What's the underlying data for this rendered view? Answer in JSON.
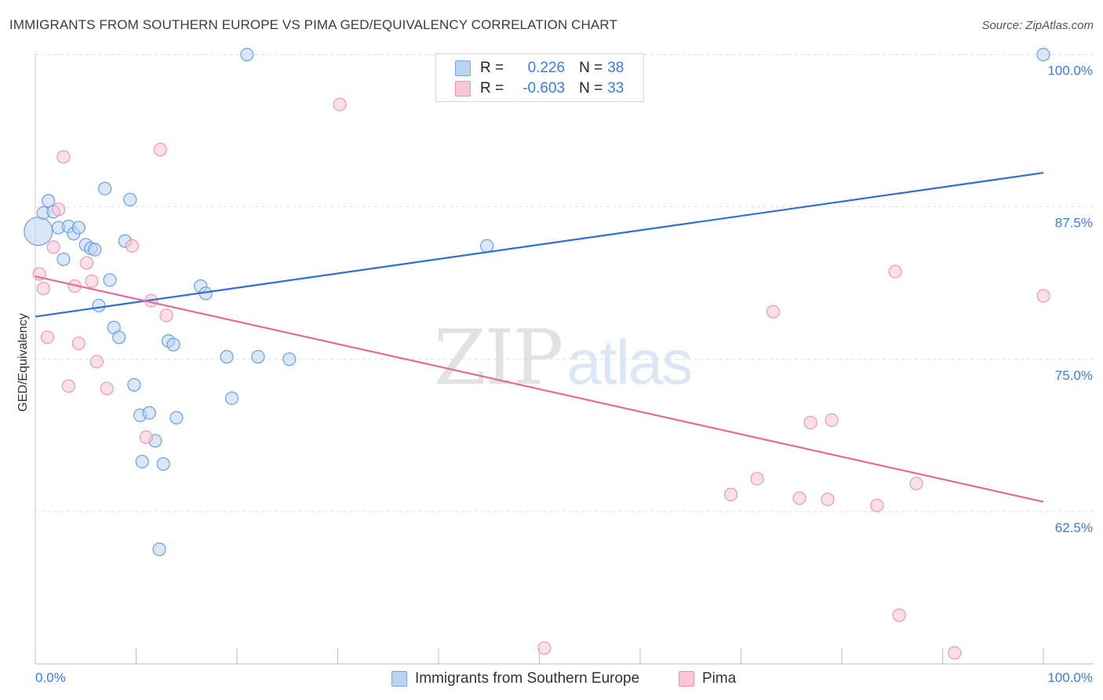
{
  "header": {
    "title": "IMMIGRANTS FROM SOUTHERN EUROPE VS PIMA GED/EQUIVALENCY CORRELATION CHART",
    "source": "Source: ZipAtlas.com"
  },
  "watermark": {
    "zip": "ZIP",
    "atlas": "atlas"
  },
  "legend": {
    "r_label": "R =",
    "n_label": "N =",
    "rows": [
      {
        "r": "0.226",
        "n": "38",
        "fill": "#b9d3f2",
        "stroke": "#7aa7e0"
      },
      {
        "r": "-0.603",
        "n": "33",
        "fill": "#f8c6d4",
        "stroke": "#ec98b2"
      }
    ]
  },
  "colors": {
    "blue_fill": "#b9d3f2",
    "blue_stroke": "#6a9fe0",
    "blue_line": "#2f6fcf",
    "pink_fill": "#f8c6d4",
    "pink_stroke": "#ec98b2",
    "pink_line": "#e46b96",
    "tick_label": "#3b7dd8",
    "grid": "#dddddd"
  },
  "chart_data": {
    "type": "scatter",
    "title": "IMMIGRANTS FROM SOUTHERN EUROPE VS PIMA GED/EQUIVALENCY CORRELATION CHART",
    "xlabel": "",
    "ylabel": "GED/Equivalency",
    "xlim": [
      0,
      100
    ],
    "ylim": [
      50,
      101
    ],
    "x_tick_labels": [
      "0.0%",
      "100.0%"
    ],
    "y_ticks": [
      62.5,
      75.0,
      87.5,
      100.0
    ],
    "y_tick_labels": [
      "62.5%",
      "75.0%",
      "87.5%",
      "100.0%"
    ],
    "grid": true,
    "legend_position": "bottom",
    "series": [
      {
        "name": "Immigrants from Southern Europe",
        "color": "#6a9fe0",
        "trend": {
          "x": [
            0,
            100
          ],
          "y": [
            78.5,
            90.3
          ]
        },
        "points": [
          {
            "x": 0.3,
            "y": 85.5,
            "big": true
          },
          {
            "x": 0.8,
            "y": 87.0
          },
          {
            "x": 1.3,
            "y": 88.0
          },
          {
            "x": 1.8,
            "y": 87.1
          },
          {
            "x": 2.3,
            "y": 85.8
          },
          {
            "x": 2.8,
            "y": 83.2
          },
          {
            "x": 3.3,
            "y": 85.9
          },
          {
            "x": 3.8,
            "y": 85.3
          },
          {
            "x": 4.3,
            "y": 85.8
          },
          {
            "x": 5.0,
            "y": 84.4
          },
          {
            "x": 5.5,
            "y": 84.1
          },
          {
            "x": 5.9,
            "y": 84.0
          },
          {
            "x": 6.3,
            "y": 79.4
          },
          {
            "x": 6.9,
            "y": 89.0
          },
          {
            "x": 7.4,
            "y": 81.5
          },
          {
            "x": 7.8,
            "y": 77.6
          },
          {
            "x": 8.3,
            "y": 76.8
          },
          {
            "x": 8.9,
            "y": 84.7
          },
          {
            "x": 9.4,
            "y": 88.1
          },
          {
            "x": 9.8,
            "y": 72.9
          },
          {
            "x": 10.4,
            "y": 70.4
          },
          {
            "x": 10.6,
            "y": 66.6
          },
          {
            "x": 11.3,
            "y": 70.6
          },
          {
            "x": 11.9,
            "y": 68.3
          },
          {
            "x": 12.3,
            "y": 59.4
          },
          {
            "x": 12.7,
            "y": 66.4
          },
          {
            "x": 13.2,
            "y": 76.5
          },
          {
            "x": 13.7,
            "y": 76.2
          },
          {
            "x": 14.0,
            "y": 70.2
          },
          {
            "x": 16.4,
            "y": 81.0
          },
          {
            "x": 16.9,
            "y": 80.4
          },
          {
            "x": 19.0,
            "y": 75.2
          },
          {
            "x": 19.5,
            "y": 71.8
          },
          {
            "x": 21.0,
            "y": 100.0
          },
          {
            "x": 22.1,
            "y": 75.2
          },
          {
            "x": 25.2,
            "y": 75.0
          },
          {
            "x": 44.8,
            "y": 84.3
          },
          {
            "x": 100.0,
            "y": 100.0
          }
        ]
      },
      {
        "name": "Pima",
        "color": "#ec98b2",
        "trend": {
          "x": [
            0,
            100
          ],
          "y": [
            81.8,
            63.3
          ]
        },
        "points": [
          {
            "x": 0.4,
            "y": 82.0
          },
          {
            "x": 0.8,
            "y": 80.8
          },
          {
            "x": 1.2,
            "y": 76.8
          },
          {
            "x": 1.8,
            "y": 84.2
          },
          {
            "x": 2.3,
            "y": 87.3
          },
          {
            "x": 2.8,
            "y": 91.6
          },
          {
            "x": 3.3,
            "y": 72.8
          },
          {
            "x": 3.9,
            "y": 81.0
          },
          {
            "x": 4.3,
            "y": 76.3
          },
          {
            "x": 5.1,
            "y": 82.9
          },
          {
            "x": 5.6,
            "y": 81.4
          },
          {
            "x": 6.1,
            "y": 74.8
          },
          {
            "x": 7.1,
            "y": 72.6
          },
          {
            "x": 9.6,
            "y": 84.3
          },
          {
            "x": 11.0,
            "y": 68.6
          },
          {
            "x": 11.5,
            "y": 79.8
          },
          {
            "x": 12.4,
            "y": 92.2
          },
          {
            "x": 13.0,
            "y": 78.6
          },
          {
            "x": 30.2,
            "y": 95.9
          },
          {
            "x": 50.5,
            "y": 51.3
          },
          {
            "x": 69.0,
            "y": 63.9
          },
          {
            "x": 71.6,
            "y": 65.2
          },
          {
            "x": 73.2,
            "y": 78.9
          },
          {
            "x": 75.8,
            "y": 63.6
          },
          {
            "x": 76.9,
            "y": 69.8
          },
          {
            "x": 78.6,
            "y": 63.5
          },
          {
            "x": 79.0,
            "y": 70.0
          },
          {
            "x": 83.5,
            "y": 63.0
          },
          {
            "x": 85.3,
            "y": 82.2
          },
          {
            "x": 85.7,
            "y": 54.0
          },
          {
            "x": 87.4,
            "y": 64.8
          },
          {
            "x": 91.2,
            "y": 50.9
          },
          {
            "x": 100.0,
            "y": 80.2
          }
        ]
      }
    ]
  }
}
